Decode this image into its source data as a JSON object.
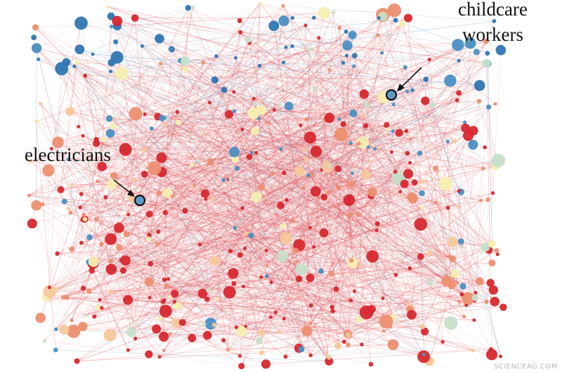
{
  "figure": {
    "labels": {
      "childcare_line1": "childcare",
      "childcare_line2": "workers",
      "electricians": "electricians"
    },
    "watermark": "SCIENCEAG.COM"
  },
  "colors": {
    "red": "#d7282f",
    "salmon": "#ec8f6f",
    "peach": "#f6c89a",
    "pale_yellow": "#f4efb0",
    "light_teal": "#c6dfc9",
    "steel_blue": "#4a8fc3",
    "blue": "#2f76b3",
    "edge_red": "#e0484d",
    "edge_blue": "#5f97c6",
    "highlight_stroke": "#111111",
    "highlight_fill": "#5d98c8"
  },
  "network": {
    "highlighted_nodes": [
      {
        "name": "childcare-workers-node",
        "label_key": "childcare"
      },
      {
        "name": "electricians-node",
        "label_key": "electricians"
      }
    ]
  }
}
